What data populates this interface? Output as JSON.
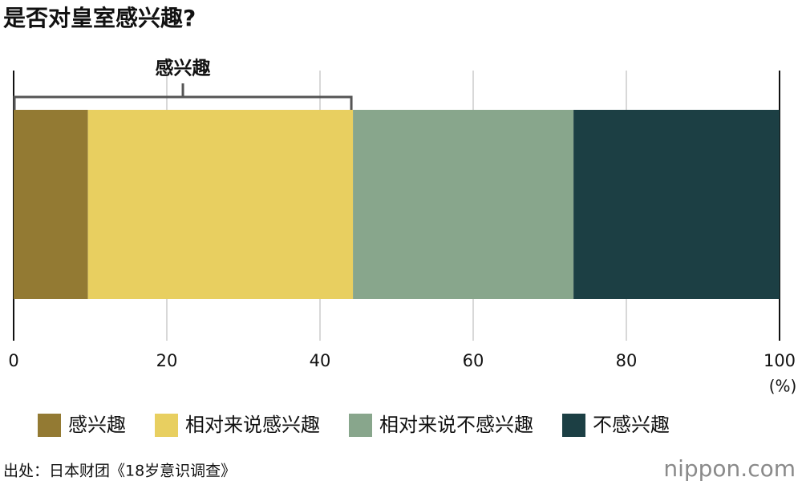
{
  "chart_data": {
    "type": "stacked_bar_horizontal",
    "title": "是否对皇室感兴趣?",
    "annotation": "感兴趣",
    "xlabel": "(%)",
    "categories": [
      null
    ],
    "series": [
      {
        "name": "感兴趣",
        "color": "#937a33",
        "values": [
          9.7
        ]
      },
      {
        "name": "相对来说感兴趣",
        "color": "#e8cf60",
        "values": [
          34.6
        ]
      },
      {
        "name": "相对来说不感兴趣",
        "color": "#88a68c",
        "values": [
          28.8
        ]
      },
      {
        "name": "不感兴趣",
        "color": "#1c3f44",
        "values": [
          26.9
        ]
      }
    ],
    "xlim": [
      0,
      100
    ],
    "xticks": [
      0,
      20,
      40,
      60,
      80,
      100
    ],
    "grid": true
  },
  "source": "出处：日本财团《18岁意识调查》",
  "logo": "nippon.com"
}
